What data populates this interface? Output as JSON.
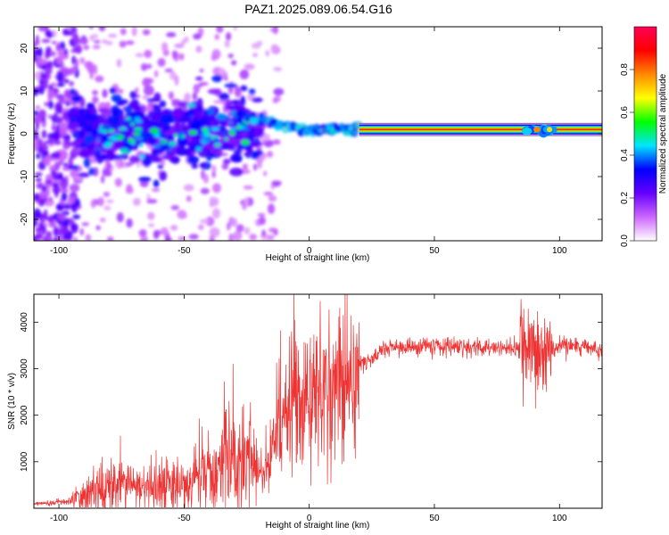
{
  "title": "PAZ1.2025.089.06.54.G16",
  "chart_data": [
    {
      "type": "heatmap",
      "xlabel": "Height of straight line (km)",
      "ylabel": "Frequency (Hz)",
      "xlim": [
        -110,
        117
      ],
      "ylim": [
        -25,
        25
      ],
      "xticks": [
        -100,
        -50,
        0,
        50,
        100
      ],
      "yticks": [
        -20,
        -10,
        0,
        10,
        20
      ],
      "colorbar": {
        "label": "Normalized spectral amplitude",
        "range": [
          0,
          1
        ],
        "ticks": [
          0.0,
          0.2,
          0.4,
          0.6,
          0.8
        ],
        "tick_labels": [
          "0.0",
          "0.2",
          "0.4",
          "0.6",
          "0.8"
        ],
        "colors": [
          "#ffffff",
          "#cc66ff",
          "#6600ff",
          "#0000ff",
          "#00e5ff",
          "#00ff00",
          "#ffff00",
          "#ff8800",
          "#ff0000",
          "#ff0055"
        ]
      },
      "features": {
        "carrier_line": {
          "x_start": 20,
          "x_end": 117,
          "frequency": 1,
          "amplitude": 0.9
        },
        "transition_ridge": [
          [
            -30,
            5
          ],
          [
            -20,
            3.5
          ],
          [
            -15,
            2.5
          ],
          [
            -10,
            2
          ],
          [
            -5,
            1.5
          ],
          [
            0,
            1
          ],
          [
            5,
            0.8
          ],
          [
            10,
            1.2
          ],
          [
            15,
            1
          ],
          [
            20,
            1
          ]
        ],
        "noise_region": {
          "x_range": [
            -110,
            -20
          ],
          "frequency_range": [
            -25,
            25
          ],
          "amplitude": 0.2
        },
        "secondary_cluster": {
          "x_range": [
            85,
            98
          ],
          "frequency": 1,
          "amplitude": 0.35
        }
      }
    },
    {
      "type": "line",
      "xlabel": "Height of straight line (km)",
      "ylabel": "SNR (10 * v/v)",
      "xlim": [
        -110,
        117
      ],
      "ylim": [
        0,
        4600
      ],
      "xticks": [
        -100,
        -50,
        0,
        50,
        100
      ],
      "yticks": [
        1000,
        2000,
        3000,
        4000
      ],
      "color": "#ee3333",
      "envelope": [
        {
          "x": -110,
          "y": 100
        },
        {
          "x": -95,
          "y": 150
        },
        {
          "x": -85,
          "y": 400
        },
        {
          "x": -75,
          "y": 500
        },
        {
          "x": -65,
          "y": 450
        },
        {
          "x": -55,
          "y": 500
        },
        {
          "x": -45,
          "y": 600
        },
        {
          "x": -35,
          "y": 900
        },
        {
          "x": -25,
          "y": 1000
        },
        {
          "x": -18,
          "y": 700
        },
        {
          "x": -12,
          "y": 1800
        },
        {
          "x": -5,
          "y": 2200
        },
        {
          "x": 0,
          "y": 2400
        },
        {
          "x": 5,
          "y": 2500
        },
        {
          "x": 10,
          "y": 2700
        },
        {
          "x": 15,
          "y": 2800
        },
        {
          "x": 20,
          "y": 3100
        },
        {
          "x": 25,
          "y": 3200
        },
        {
          "x": 30,
          "y": 3450
        },
        {
          "x": 40,
          "y": 3450
        },
        {
          "x": 50,
          "y": 3500
        },
        {
          "x": 60,
          "y": 3450
        },
        {
          "x": 70,
          "y": 3450
        },
        {
          "x": 80,
          "y": 3450
        },
        {
          "x": 85,
          "y": 3400
        },
        {
          "x": 88,
          "y": 3200
        },
        {
          "x": 92,
          "y": 3400
        },
        {
          "x": 95,
          "y": 3300
        },
        {
          "x": 100,
          "y": 3500
        },
        {
          "x": 110,
          "y": 3450
        },
        {
          "x": 117,
          "y": 3400
        }
      ]
    }
  ]
}
